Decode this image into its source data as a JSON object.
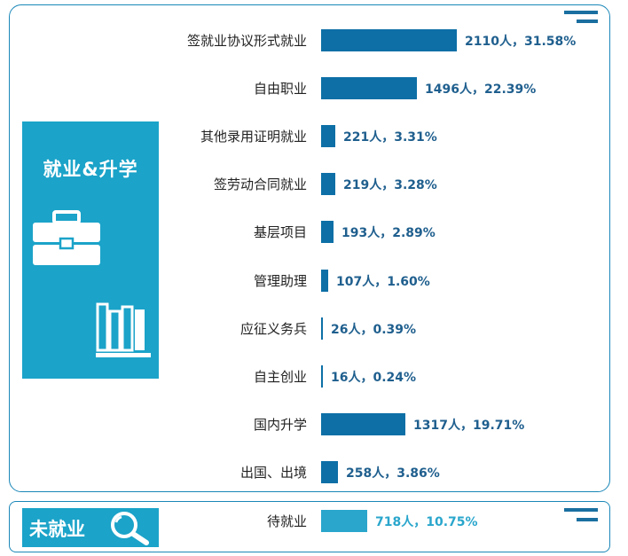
{
  "panels": {
    "employment_title": "就业&升学",
    "unemployed_title": "未就业"
  },
  "icons": {
    "employment": [
      "briefcase-icon",
      "books-icon"
    ],
    "unemployed": "magnifier-icon"
  },
  "colors": {
    "frame": "#1a87b8",
    "panel": "#1ba3c9",
    "bar": "#0d6fa6",
    "bar_unemployed": "#2aa6cc",
    "value_text": "#1f5f8e"
  },
  "chart_data": {
    "type": "bar",
    "orientation": "horizontal",
    "categories": [
      "签就业协议形式就业",
      "自由职业",
      "其他录用证明就业",
      "签劳动合同就业",
      "基层项目",
      "管理助理",
      "应征义务兵",
      "自主创业",
      "国内升学",
      "出国、出境",
      "待就业"
    ],
    "values": [
      2110,
      1496,
      221,
      219,
      193,
      107,
      26,
      16,
      1317,
      258,
      718
    ],
    "percents": [
      "31.58%",
      "22.39%",
      "3.31%",
      "3.28%",
      "2.89%",
      "1.60%",
      "0.39%",
      "0.24%",
      "19.71%",
      "3.86%",
      "10.75%"
    ],
    "value_labels": [
      "2110人，31.58%",
      "1496人，22.39%",
      "221人，3.31%",
      "219人，3.28%",
      "193人，2.89%",
      "107人，1.60%",
      "26人，0.39%",
      "16人，0.24%",
      "1317人，19.71%",
      "258人，3.86%",
      "718人，10.75%"
    ],
    "groups": [
      "employed",
      "employed",
      "employed",
      "employed",
      "employed",
      "employed",
      "employed",
      "employed",
      "employed",
      "employed",
      "unemployed"
    ],
    "xlim": [
      0,
      2110
    ]
  }
}
